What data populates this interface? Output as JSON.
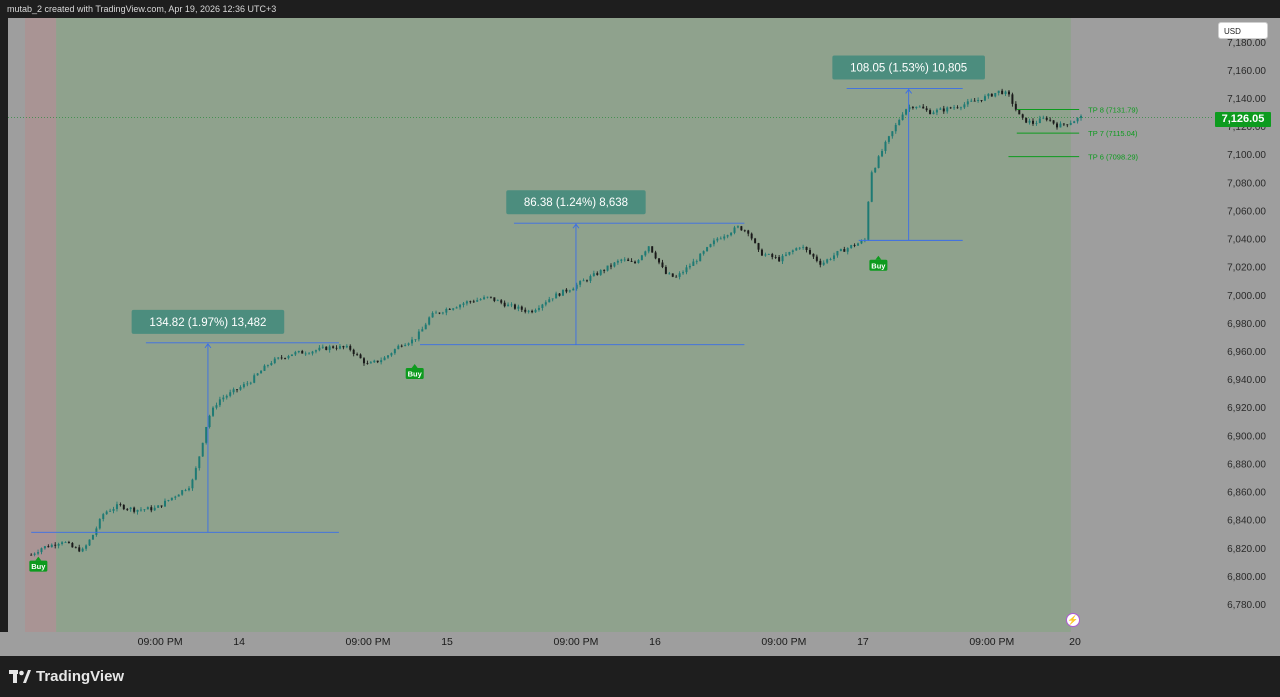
{
  "header": {
    "attribution": "mutab_2 created with TradingView.com, Apr 19, 2026 12:36 UTC+3"
  },
  "currency_label": "USD",
  "current_price_label": "7,126.05",
  "footer": {
    "brand": "TradingView"
  },
  "colors": {
    "green_zone": "#8fa28d",
    "red_zone": "#a99494",
    "frame": "#9e9e9e",
    "measure_line": "#3a6ee8",
    "label_box": "#4c8d7e",
    "buy_badge": "#0d9b1e",
    "tp_line": "#0d9b1e",
    "candle_up": "#1e7a74",
    "candle_down": "#1a1a1a"
  },
  "chart_data": {
    "type": "candlestick",
    "title": "",
    "ylim": [
      6775,
      7172
    ],
    "y_ticks": [
      "7,160.00",
      "7,140.00",
      "7,120.00",
      "7,100.00",
      "7,080.00",
      "7,060.00",
      "7,040.00",
      "7,020.00",
      "7,000.00",
      "6,980.00",
      "6,960.00",
      "6,940.00",
      "6,920.00",
      "6,900.00",
      "6,880.00",
      "6,860.00",
      "6,840.00",
      "6,820.00",
      "6,800.00",
      "6,780.00"
    ],
    "y_tick_values": [
      7160,
      7140,
      7120,
      7100,
      7080,
      7060,
      7040,
      7020,
      7000,
      6980,
      6960,
      6940,
      6920,
      6900,
      6880,
      6860,
      6840,
      6820,
      6800,
      6780
    ],
    "partial_top_tick": "7,180.00",
    "x_ticks": [
      {
        "label": "09:00 PM",
        "time": 0.62
      },
      {
        "label": "14",
        "time": 1.0
      },
      {
        "label": "09:00 PM",
        "time": 1.62
      },
      {
        "label": "15",
        "time": 2.0
      },
      {
        "label": "09:00 PM",
        "time": 2.62
      },
      {
        "label": "16",
        "time": 3.0
      },
      {
        "label": "09:00 PM",
        "time": 3.62
      },
      {
        "label": "17",
        "time": 4.0
      },
      {
        "label": "09:00 PM",
        "time": 4.62
      },
      {
        "label": "20",
        "time": 5.02
      }
    ],
    "price_path": [
      [
        0.0,
        6815
      ],
      [
        0.05,
        6820
      ],
      [
        0.1,
        6822
      ],
      [
        0.15,
        6825
      ],
      [
        0.2,
        6820
      ],
      [
        0.25,
        6818
      ],
      [
        0.3,
        6830
      ],
      [
        0.35,
        6845
      ],
      [
        0.42,
        6850
      ],
      [
        0.5,
        6847
      ],
      [
        0.6,
        6848
      ],
      [
        0.7,
        6858
      ],
      [
        0.77,
        6865
      ],
      [
        0.8,
        6880
      ],
      [
        0.85,
        6912
      ],
      [
        0.9,
        6925
      ],
      [
        0.96,
        6930
      ],
      [
        1.05,
        6938
      ],
      [
        1.15,
        6952
      ],
      [
        1.25,
        6958
      ],
      [
        1.35,
        6960
      ],
      [
        1.45,
        6963
      ],
      [
        1.53,
        6962
      ],
      [
        1.58,
        6955
      ],
      [
        1.62,
        6950
      ],
      [
        1.7,
        6955
      ],
      [
        1.78,
        6965
      ],
      [
        1.84,
        6968
      ],
      [
        1.88,
        6975
      ],
      [
        1.92,
        6985
      ],
      [
        2.0,
        6990
      ],
      [
        2.1,
        6995
      ],
      [
        2.2,
        6998
      ],
      [
        2.3,
        6992
      ],
      [
        2.4,
        6988
      ],
      [
        2.5,
        6998
      ],
      [
        2.6,
        7005
      ],
      [
        2.72,
        7015
      ],
      [
        2.84,
        7025
      ],
      [
        2.9,
        7022
      ],
      [
        2.97,
        7035
      ],
      [
        3.0,
        7028
      ],
      [
        3.05,
        7015
      ],
      [
        3.1,
        7012
      ],
      [
        3.2,
        7025
      ],
      [
        3.3,
        7040
      ],
      [
        3.4,
        7048
      ],
      [
        3.45,
        7045
      ],
      [
        3.5,
        7030
      ],
      [
        3.6,
        7025
      ],
      [
        3.7,
        7035
      ],
      [
        3.8,
        7022
      ],
      [
        3.88,
        7030
      ],
      [
        3.95,
        7035
      ],
      [
        4.0,
        7038
      ],
      [
        4.02,
        7040
      ],
      [
        4.03,
        7085
      ],
      [
        4.06,
        7092
      ],
      [
        4.1,
        7105
      ],
      [
        4.15,
        7118
      ],
      [
        4.2,
        7132
      ],
      [
        4.25,
        7135
      ],
      [
        4.32,
        7130
      ],
      [
        4.4,
        7132
      ],
      [
        4.5,
        7136
      ],
      [
        4.58,
        7140
      ],
      [
        4.66,
        7145
      ],
      [
        4.7,
        7142
      ],
      [
        4.76,
        7125
      ],
      [
        4.82,
        7122
      ],
      [
        4.88,
        7126
      ],
      [
        4.94,
        7120
      ],
      [
        5.0,
        7123
      ],
      [
        5.06,
        7127
      ]
    ],
    "measurements": [
      {
        "label": "134.82 (1.97%) 13,482",
        "from_price": 6831,
        "to_price": 6965.8,
        "time": 0.85,
        "line_start": 0.0,
        "line_end": 1.48
      },
      {
        "label": "86.38 (1.24%) 8,638",
        "from_price": 6964.5,
        "to_price": 7050.9,
        "time": 2.62,
        "line_start": 1.87,
        "line_end": 3.43
      },
      {
        "label": "108.05 (1.53%) 10,805",
        "from_price": 7038.7,
        "to_price": 7146.8,
        "time": 4.22,
        "line_start": 3.98,
        "line_end": 4.48
      }
    ],
    "buy_signals": [
      {
        "label": "Buy",
        "time": 0.02,
        "price": 6818
      },
      {
        "label": "Buy",
        "time": 1.83,
        "price": 6955
      },
      {
        "label": "Buy",
        "time": 4.06,
        "price": 7032
      }
    ],
    "take_profits": [
      {
        "label": "TP 8 (7131.79)",
        "price": 7131.79
      },
      {
        "label": "TP 7 (7115.04)",
        "price": 7115.04
      },
      {
        "label": "TP 6 (7098.29)",
        "price": 7098.29
      }
    ],
    "current_price": 7126.05,
    "session_zones": [
      {
        "type": "premarket",
        "time_start": -0.03,
        "time_end": 0.12
      },
      {
        "type": "regular",
        "time_start": 0.12,
        "time_end": 5.0
      }
    ]
  }
}
